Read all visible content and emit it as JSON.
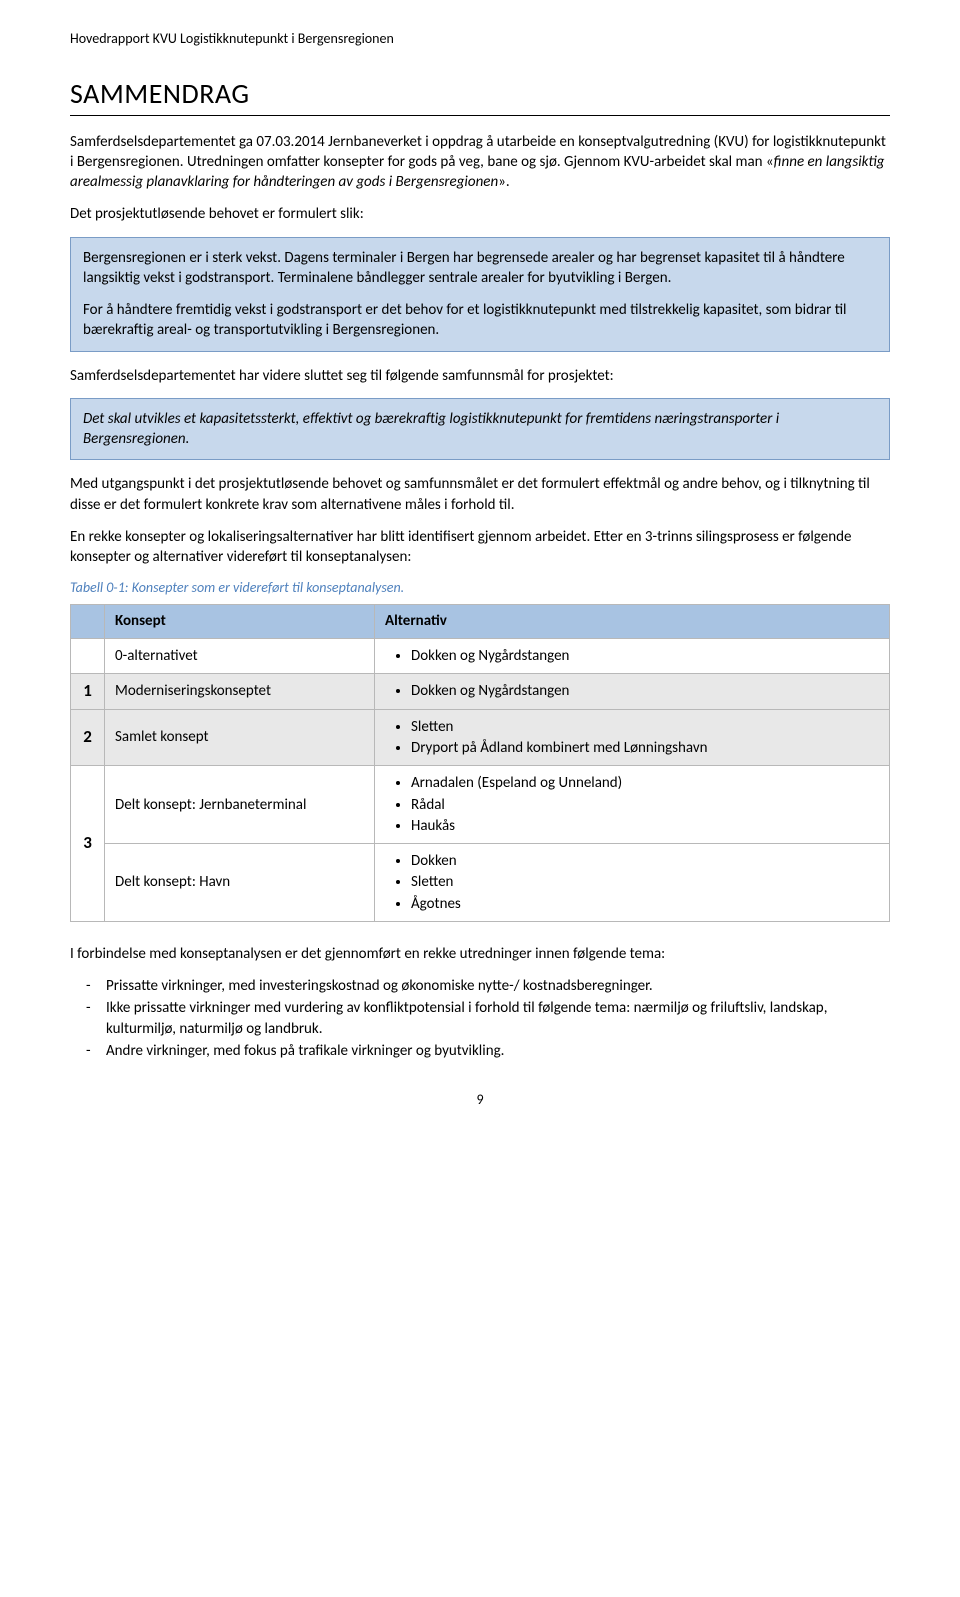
{
  "header": "Hovedrapport KVU Logistikknutepunkt i Bergensregionen",
  "title": "SAMMENDRAG",
  "intro_p1": "Samferdselsdepartementet ga 07.03.2014 Jernbaneverket i oppdrag å utarbeide en konseptvalgutredning (KVU) for logistikknutepunkt i Bergensregionen. Utredningen omfatter konsepter for gods på veg, bane og sjø. Gjennom KVU-arbeidet skal man «",
  "intro_p1_italic": "finne en langsiktig arealmessig planavklaring for håndteringen av gods i Bergensregionen",
  "intro_p1_after": "».",
  "intro_p2": "Det prosjektutløsende behovet er formulert slik:",
  "callout1_p1": "Bergensregionen er i sterk vekst. Dagens terminaler i Bergen har begrensede arealer og har begrenset kapasitet til å håndtere langsiktig vekst i godstransport. Terminalene båndlegger sentrale arealer for byutvikling i Bergen.",
  "callout1_p2": "For å håndtere fremtidig vekst i godstransport er det behov for et logistikknutepunkt med tilstrekkelig kapasitet, som bidrar til bærekraftig areal- og transportutvikling i Bergensregionen.",
  "p_after_callout1": "Samferdselsdepartementet har videre sluttet seg til følgende samfunnsmål for prosjektet:",
  "callout2": "Det skal utvikles et kapasitetssterkt, effektivt og bærekraftig logistikknutepunkt for fremtidens næringstransporter i Bergensregionen.",
  "p_mid1": "Med utgangspunkt i det prosjektutløsende behovet og samfunnsmålet er det formulert effektmål og andre behov, og i tilknytning til disse er det formulert konkrete krav som alternativene måles i forhold til.",
  "p_mid2": "En rekke konsepter og lokaliseringsalternativer har blitt identifisert gjennom arbeidet. Etter en 3-trinns silingsprosess er følgende konsepter og alternativer videreført til konseptanalysen:",
  "table_caption": "Tabell 0-1: Konsepter som er videreført til konseptanalysen.",
  "table": {
    "head_num": "",
    "head_konsept": "Konsept",
    "head_alt": "Alternativ",
    "rows": [
      {
        "num": "",
        "concept": "0-alternativet",
        "gray": false,
        "alts": [
          "Dokken og Nygårdstangen"
        ]
      },
      {
        "num": "1",
        "concept": "Moderniseringskonseptet",
        "gray": true,
        "alts": [
          "Dokken og Nygårdstangen"
        ]
      },
      {
        "num": "2",
        "concept": "Samlet konsept",
        "gray": true,
        "alts": [
          "Sletten",
          "Dryport på Ådland kombinert med Lønningshavn"
        ]
      },
      {
        "num": "3",
        "rowspan": 2,
        "concept": "Delt konsept: Jernbaneterminal",
        "gray": false,
        "alts": [
          "Arnadalen (Espeland og Unneland)",
          "Rådal",
          "Haukås"
        ]
      },
      {
        "concept": "Delt konsept: Havn",
        "gray": false,
        "alts": [
          "Dokken",
          "Sletten",
          "Ågotnes"
        ]
      }
    ]
  },
  "p_after_table": "I forbindelse med konseptanalysen er det gjennomført en rekke utredninger innen følgende tema:",
  "bullets": [
    "Prissatte virkninger, med investeringskostnad og økonomiske nytte-/ kostnadsberegninger.",
    "Ikke prissatte virkninger med vurdering av konfliktpotensial i forhold til følgende tema: nærmiljø og friluftsliv, landskap, kulturmiljø, naturmiljø og landbruk.",
    "Andre virkninger, med fokus på trafikale virkninger og byutvikling."
  ],
  "page_number": "9"
}
